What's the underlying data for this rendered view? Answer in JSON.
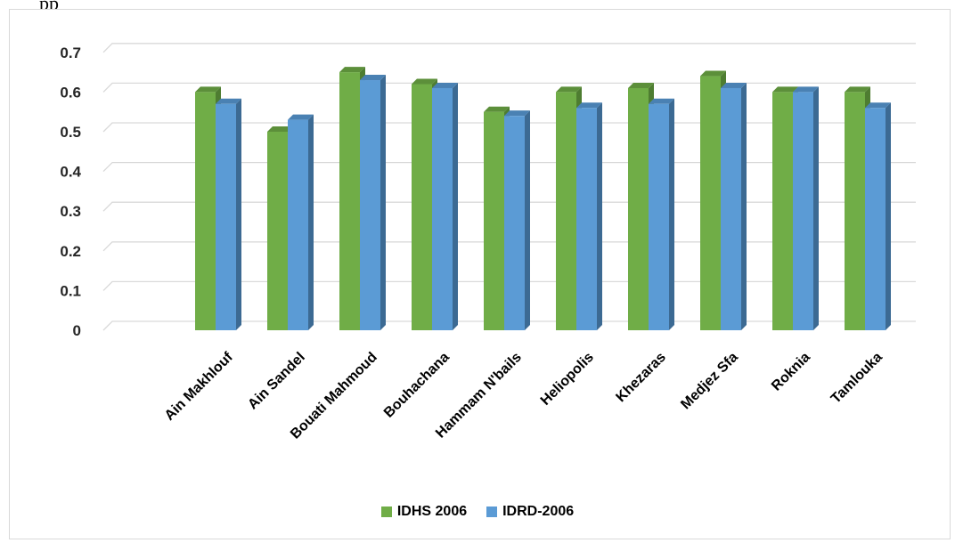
{
  "header_fragment": "pp",
  "colors": {
    "series1_front": "#70ad47",
    "series1_side": "#4e7d31",
    "series1_top": "#5c8f3a",
    "series2_front": "#5b9bd5",
    "series2_side": "#3c6a93",
    "series2_top": "#4a81b3",
    "grid": "#d9d9d9"
  },
  "chart_data": {
    "type": "bar",
    "style": "3d-clustered-column",
    "title": "",
    "xlabel": "",
    "ylabel": "",
    "ylim": [
      0,
      0.7
    ],
    "y_ticks": [
      "0",
      "0.1",
      "0.2",
      "0.3",
      "0.4",
      "0.5",
      "0.6",
      "0.7"
    ],
    "grid": true,
    "legend_position": "bottom",
    "categories": [
      "Ain Makhlouf",
      "Ain Sandel",
      "Bouati Mahmoud",
      "Bouhachana",
      "Hammam N'bails",
      "Heliopolis",
      "Khezaras",
      "Medjez Sfa",
      "Roknia",
      "Tamlouka"
    ],
    "series": [
      {
        "name": "IDHS 2006",
        "values": [
          0.6,
          0.5,
          0.65,
          0.62,
          0.55,
          0.6,
          0.61,
          0.64,
          0.6,
          0.6
        ]
      },
      {
        "name": "IDRD-2006",
        "values": [
          0.57,
          0.53,
          0.63,
          0.61,
          0.54,
          0.56,
          0.57,
          0.61,
          0.6,
          0.56
        ]
      }
    ]
  }
}
